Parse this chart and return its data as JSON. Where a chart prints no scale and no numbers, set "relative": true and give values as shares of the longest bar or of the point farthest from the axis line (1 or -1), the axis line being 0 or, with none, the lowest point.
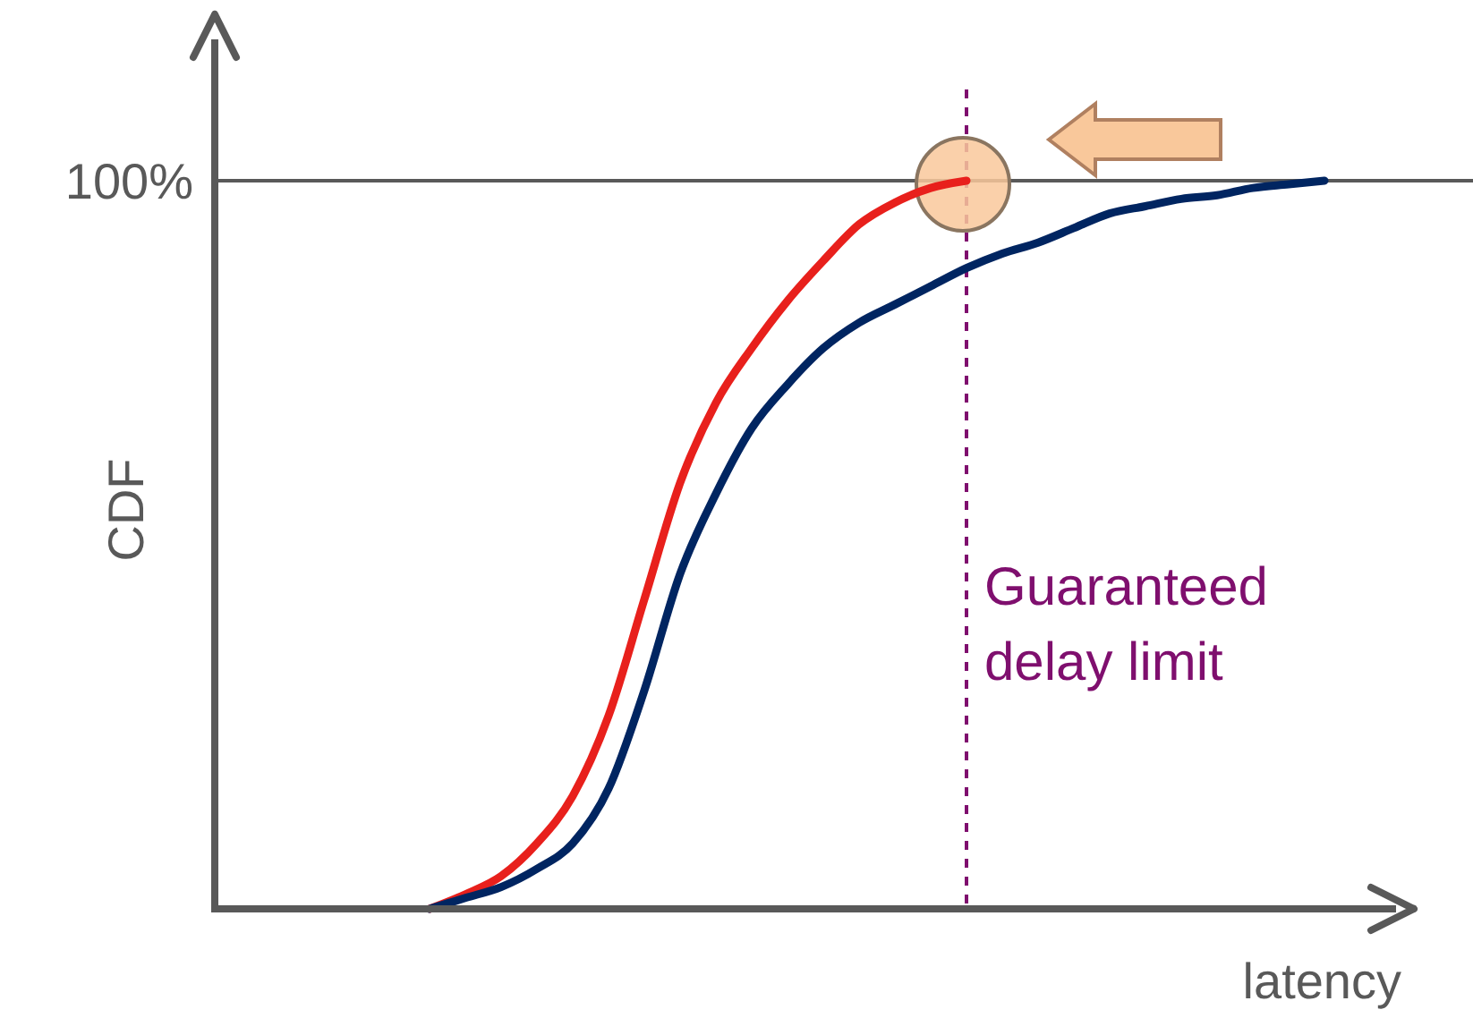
{
  "chart_data": {
    "type": "line",
    "relative": true,
    "xlabel": "latency",
    "ylabel": "CDF",
    "categories": [
      null,
      null,
      null,
      null,
      null,
      null,
      null,
      null,
      null,
      null,
      null,
      null,
      null,
      null,
      null,
      null,
      null,
      null,
      null,
      null,
      null,
      null,
      null,
      null,
      null,
      null,
      null,
      null,
      null,
      null,
      null,
      null,
      null,
      null
    ],
    "series": [
      {
        "color": "#e8201c",
        "values": [
          null,
          null,
          null,
          null,
          null,
          null,
          0.0,
          0.02,
          0.045,
          0.09,
          0.155,
          0.265,
          0.425,
          0.585,
          0.695,
          0.77,
          0.835,
          0.89,
          0.94,
          0.97,
          0.99,
          1.0,
          null,
          null,
          null,
          null,
          null,
          null,
          null,
          null,
          null,
          null,
          null,
          null
        ]
      },
      {
        "color": "#002561",
        "values": [
          null,
          null,
          null,
          null,
          null,
          null,
          0.0,
          0.015,
          0.03,
          0.055,
          0.09,
          0.165,
          0.3,
          0.46,
          0.57,
          0.66,
          0.72,
          0.77,
          0.805,
          0.83,
          0.855,
          0.88,
          0.9,
          0.915,
          0.935,
          0.955,
          0.965,
          0.975,
          0.98,
          0.99,
          0.995,
          1.0,
          null,
          null
        ]
      }
    ],
    "ref_lines": [
      {
        "axis": "y",
        "value": 1,
        "label": "100%",
        "color": "#595959",
        "line_style": "solid"
      }
    ],
    "annotations": [
      "Guaranteed delay limit"
    ],
    "grid": false,
    "marker": "none",
    "line_style": "solid"
  }
}
